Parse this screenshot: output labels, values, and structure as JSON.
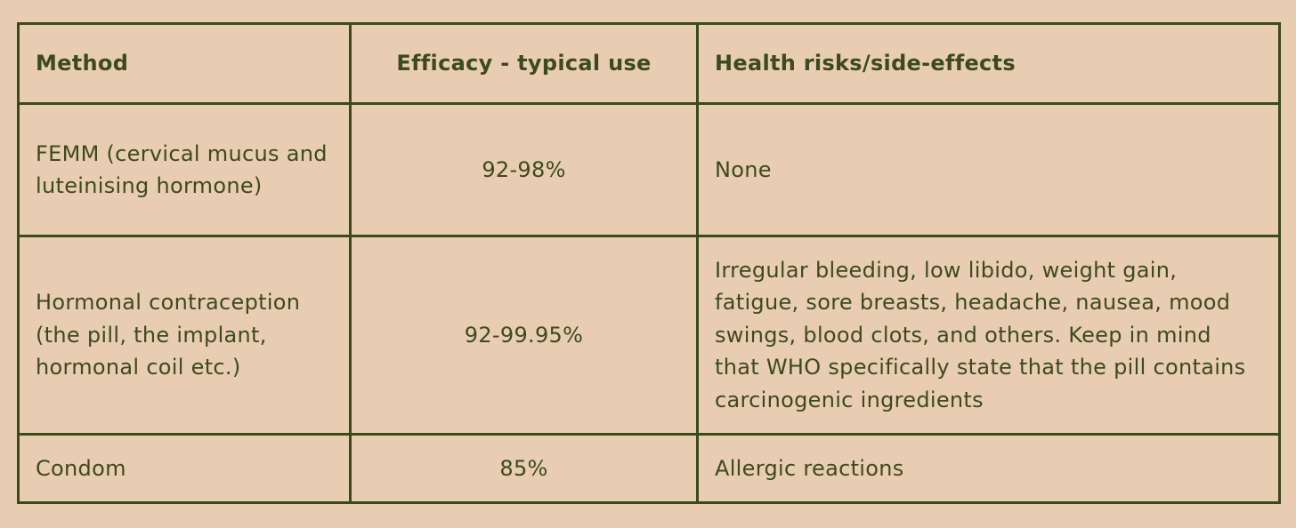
{
  "table": {
    "headers": [
      "Method",
      "Efficacy - typical use",
      "Health risks/side-effects"
    ],
    "rows": [
      {
        "method": "FEMM (cervical mucus and luteinising hormone)",
        "efficacy": "92-98%",
        "risks": "None"
      },
      {
        "method": "Hormonal contraception (the pill, the implant, hormonal coil etc.)",
        "efficacy": "92-99.95%",
        "risks": "Irregular bleeding, low libido, weight gain, fatigue, sore breasts, headache, nausea, mood swings, blood clots, and others. Keep in mind that WHO specifically state that the pill contains carcinogenic ingredients"
      },
      {
        "method": "Condom",
        "efficacy": "85%",
        "risks": "Allergic reactions"
      }
    ]
  },
  "colors": {
    "background": "#e8cdb2",
    "border": "#3b4a17",
    "text": "#3d4a1c"
  }
}
